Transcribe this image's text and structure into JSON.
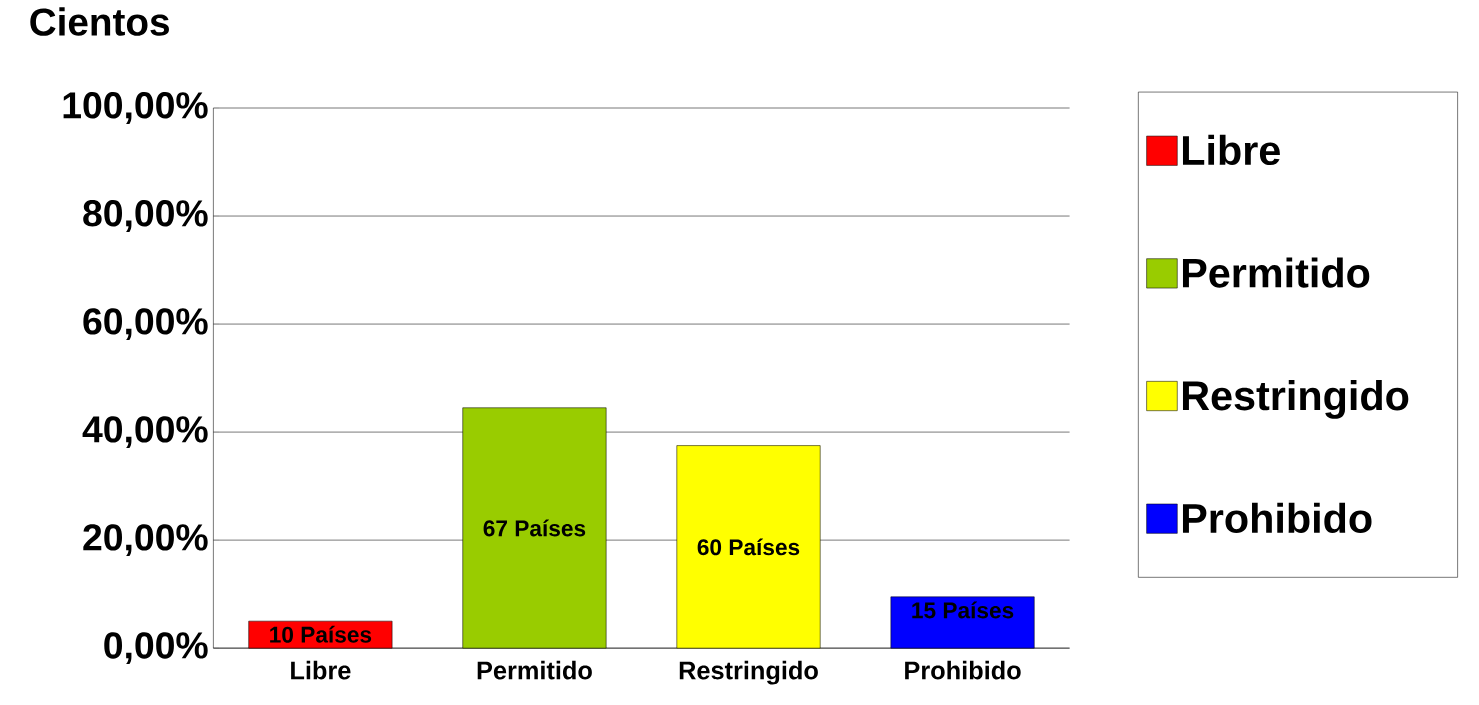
{
  "chart_data": {
    "type": "bar",
    "title": "Cientos",
    "categories": [
      "Libre",
      "Permitido",
      "Restringido",
      "Prohibido"
    ],
    "series": [
      {
        "name": "Libre",
        "color": "#ff0000",
        "values": [
          5,
          null,
          null,
          null
        ]
      },
      {
        "name": "Permitido",
        "color": "#99cc00",
        "values": [
          null,
          44.5,
          null,
          null
        ]
      },
      {
        "name": "Restringido",
        "color": "#ffff00",
        "values": [
          null,
          null,
          37.5,
          null
        ]
      },
      {
        "name": "Prohibido",
        "color": "#0000ff",
        "values": [
          null,
          null,
          null,
          9.5
        ]
      }
    ],
    "annotations": [
      "10 Países",
      "67 Países",
      "60 Países",
      "15 Países"
    ],
    "ylim": [
      0,
      100
    ],
    "yticks": [
      {
        "value": 0,
        "label": "0,00%"
      },
      {
        "value": 20,
        "label": "20,00%"
      },
      {
        "value": 40,
        "label": "40,00%"
      },
      {
        "value": 60,
        "label": "60,00%"
      },
      {
        "value": 80,
        "label": "80,00%"
      },
      {
        "value": 100,
        "label": "100,00%"
      }
    ],
    "grid": "y",
    "legend": "right"
  }
}
